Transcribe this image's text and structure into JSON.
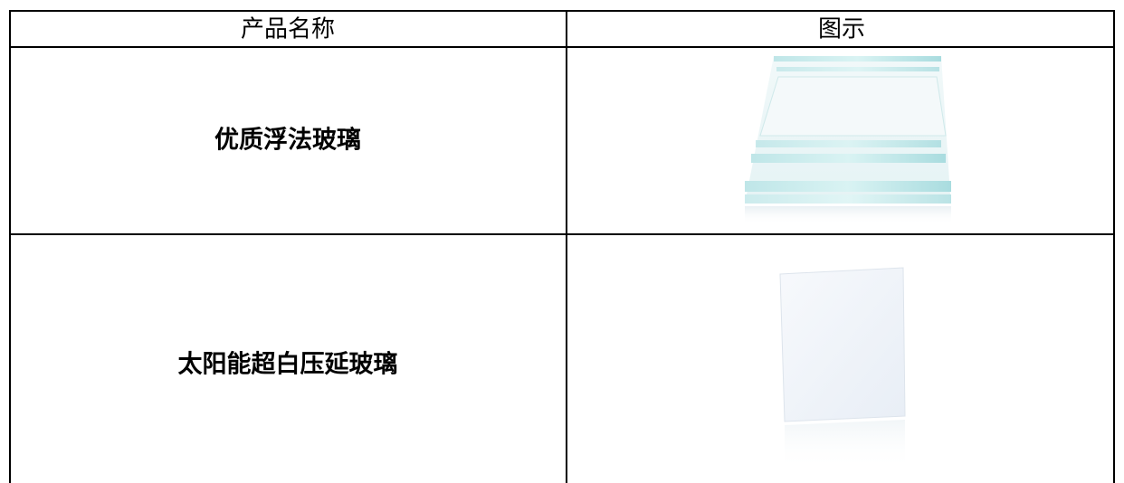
{
  "table": {
    "header": [
      "产品名称",
      "图示"
    ],
    "rows": [
      [
        "优质浮法玻璃"
      ],
      [
        "太阳能超白压延玻璃"
      ]
    ]
  }
}
